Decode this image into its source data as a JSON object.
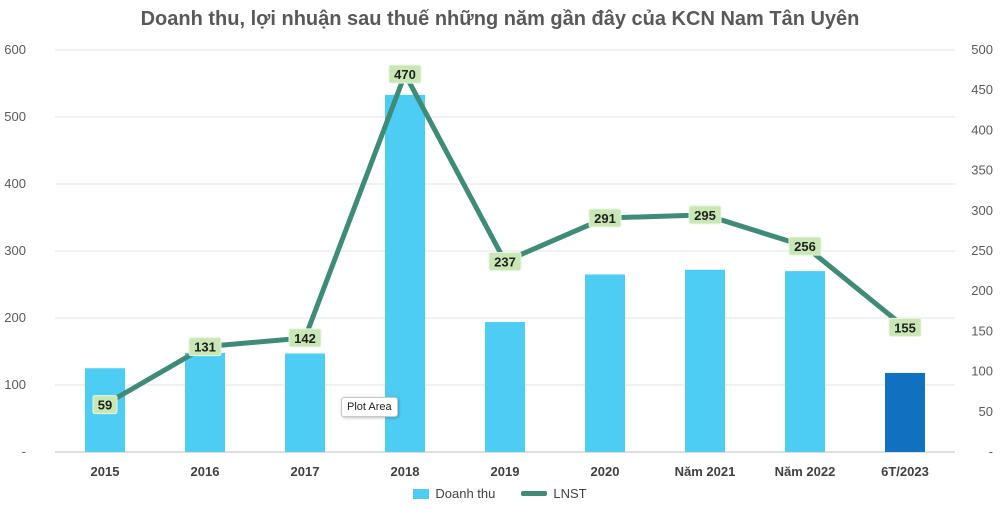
{
  "chart_data": {
    "type": "bar",
    "title": "Doanh thu, lợi nhuận sau thuế những năm gần đây của KCN Nam Tân Uyên",
    "categories": [
      "2015",
      "2016",
      "2017",
      "2018",
      "2019",
      "2020",
      "Năm 2021",
      "Năm 2022",
      "6T/2023"
    ],
    "series": [
      {
        "name": "Doanh thu",
        "type": "bar",
        "axis": "left",
        "values": [
          125,
          148,
          147,
          533,
          194,
          265,
          272,
          270,
          118
        ],
        "color": "#4ecdf4",
        "highlight_color": "#1170bf",
        "highlight_index": 8
      },
      {
        "name": "LNST",
        "type": "line",
        "axis": "right",
        "values": [
          59,
          131,
          142,
          470,
          237,
          291,
          295,
          256,
          155
        ],
        "data_labels": [
          "59",
          "131",
          "142",
          "470",
          "237",
          "291",
          "295",
          "256",
          "155"
        ],
        "color": "#3e8c78"
      }
    ],
    "y_left": {
      "min": 0,
      "max": 600,
      "ticks": [
        0,
        100,
        200,
        300,
        400,
        500,
        600
      ],
      "tick_labels": [
        "-",
        "100",
        "200",
        "300",
        "400",
        "500",
        "600"
      ]
    },
    "y_right": {
      "min": 0,
      "max": 500,
      "ticks": [
        0,
        50,
        100,
        150,
        200,
        250,
        300,
        350,
        400,
        450,
        500
      ],
      "tick_labels": [
        "-",
        "50",
        "100",
        "150",
        "200",
        "250",
        "300",
        "350",
        "400",
        "450",
        "500"
      ]
    },
    "grid": true,
    "legend_position": "bottom",
    "label_box_color": "#c9e7b5"
  },
  "tooltip": {
    "text": "Plot Area"
  }
}
